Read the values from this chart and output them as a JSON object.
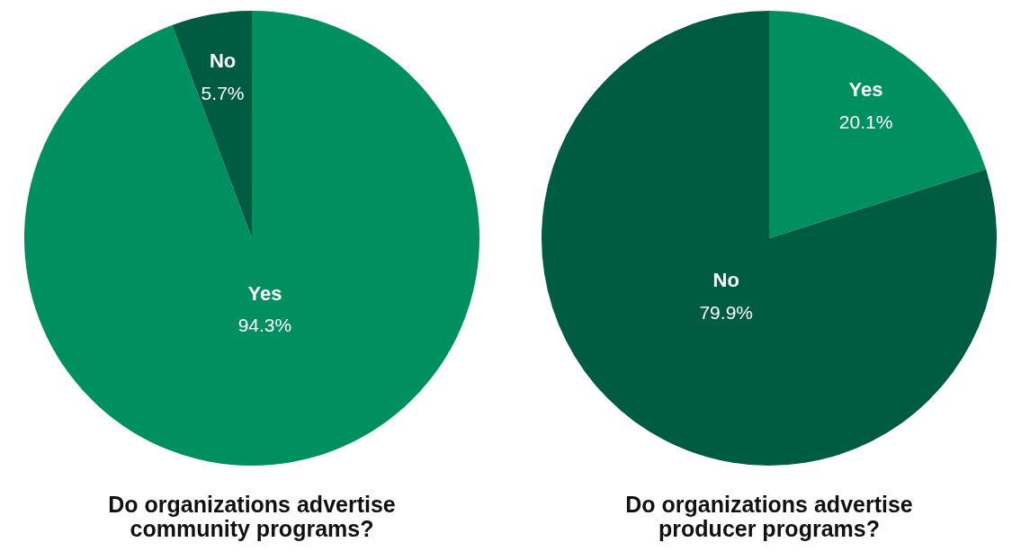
{
  "chart_data": [
    {
      "type": "pie",
      "title": "Do organizations advertise community programs?",
      "categories": [
        "Yes",
        "No"
      ],
      "values": [
        94.3,
        5.7
      ],
      "colors": [
        "#00905f",
        "#005c40"
      ],
      "value_labels": [
        "94.3%",
        "5.7%"
      ]
    },
    {
      "type": "pie",
      "title": "Do organizations advertise producer programs?",
      "categories": [
        "Yes",
        "No"
      ],
      "values": [
        20.1,
        79.9
      ],
      "colors": [
        "#00905f",
        "#005c40"
      ],
      "value_labels": [
        "20.1%",
        "79.9%"
      ]
    }
  ]
}
